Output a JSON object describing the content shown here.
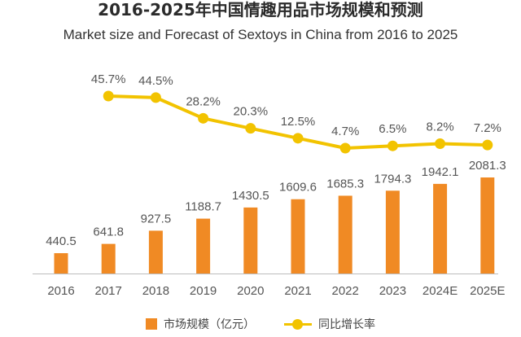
{
  "title": "2016-2025年中国情趣用品市场规模和预测",
  "subtitle": "Market size and Forecast of Sextoys in China from 2016 to 2025",
  "colors": {
    "bar": "#F08A24",
    "line": "#F2C300",
    "axis": "#BDBDBD",
    "text": "#555555"
  },
  "legend": {
    "bar_label": "市场规模（亿元）",
    "line_label": "同比增长率"
  },
  "chart_data": {
    "type": "bar+line",
    "title": "2016-2025年中国情趣用品市场规模和预测",
    "subtitle": "Market size and Forecast of Sextoys in China from 2016 to 2025",
    "categories": [
      "2016",
      "2017",
      "2018",
      "2019",
      "2020",
      "2021",
      "2022",
      "2023",
      "2024E",
      "2025E"
    ],
    "series": [
      {
        "name": "市场规模（亿元）",
        "type": "bar",
        "values": [
          440.5,
          641.8,
          927.5,
          1188.7,
          1430.5,
          1609.6,
          1685.3,
          1794.3,
          1942.1,
          2081.3
        ],
        "labels": [
          "440.5",
          "641.8",
          "927.5",
          "1188.7",
          "1430.5",
          "1609.6",
          "1685.3",
          "1794.3",
          "1942.1",
          "2081.3"
        ]
      },
      {
        "name": "同比增长率",
        "type": "line",
        "values": [
          null,
          45.7,
          44.5,
          28.2,
          20.3,
          12.5,
          4.7,
          6.5,
          8.2,
          7.2
        ],
        "labels": [
          "",
          "45.7%",
          "44.5%",
          "28.2%",
          "20.3%",
          "12.5%",
          "4.7%",
          "6.5%",
          "8.2%",
          "7.2%"
        ]
      }
    ],
    "bar_ylim": [
      0,
      2100
    ],
    "line_ylim": [
      0,
      50
    ],
    "legend_position": "bottom"
  }
}
